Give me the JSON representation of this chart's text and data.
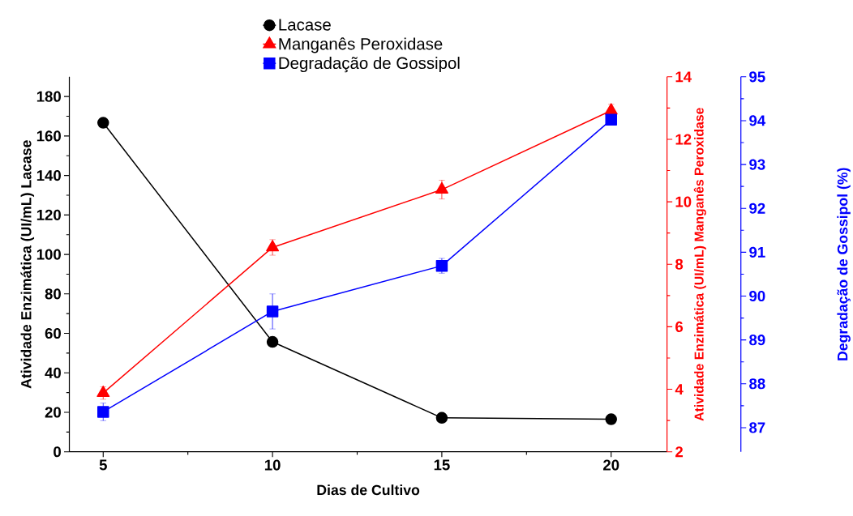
{
  "chart_data": {
    "type": "line",
    "xlabel": "Dias de Cultivo",
    "ylabel": "Atividade Enzimática (UI/mL) Lacase",
    "y2label": "Atividade Enzimática (UI/mL) Manganês Peroxidase",
    "y3label": "Degradação de Gossipol (%)",
    "x": [
      5,
      10,
      15,
      20
    ],
    "xlim": [
      4,
      21.65
    ],
    "xticks": [
      5,
      10,
      15,
      20
    ],
    "ylim": [
      0,
      190
    ],
    "yticks": [
      0,
      20,
      40,
      60,
      80,
      100,
      120,
      140,
      160,
      180
    ],
    "y2lim": [
      2,
      14
    ],
    "y2ticks": [
      2,
      4,
      6,
      8,
      10,
      12,
      14
    ],
    "y3lim": [
      86.45,
      95
    ],
    "y3ticks": [
      87,
      88,
      89,
      90,
      91,
      92,
      93,
      94,
      95
    ],
    "legend": "top",
    "grid": false,
    "series": [
      {
        "name": "Lacase",
        "color": "#000000",
        "marker": "circle",
        "values": [
          166.7,
          55.7,
          17.2,
          16.5
        ]
      },
      {
        "name": "Manganês Peroxidase",
        "color": "#ff0000",
        "marker": "triangle",
        "axis": "y2",
        "values": [
          3.88,
          8.54,
          10.39,
          12.92
        ],
        "errors": [
          0.2,
          0.25,
          0.3,
          0.2
        ]
      },
      {
        "name": "Degradação de Gossipol",
        "color": "#0000ff",
        "marker": "square",
        "axis": "y3",
        "values": [
          87.36,
          89.65,
          90.69,
          94.02
        ],
        "errors": [
          0.2,
          0.4,
          0.17,
          null
        ]
      }
    ]
  }
}
